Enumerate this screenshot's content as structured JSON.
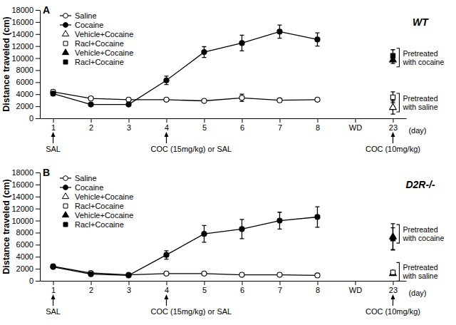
{
  "chart_data": [
    {
      "type": "line",
      "panel_label": "A",
      "title": "WT",
      "y_label": "Distance traveled (cm)",
      "x_label": "(day)",
      "categories": [
        "1",
        "2",
        "3",
        "4",
        "5",
        "6",
        "7",
        "8",
        "WD",
        "23"
      ],
      "ylim": [
        0,
        18000
      ],
      "yticks": [
        0,
        2000,
        4000,
        6000,
        8000,
        10000,
        12000,
        14000,
        16000,
        18000
      ],
      "legend": "top-left",
      "series": [
        {
          "name": "Saline",
          "color": "#000000",
          "marker": "circle-open",
          "line_style": "solid",
          "values": [
            4400,
            3300,
            3100,
            3100,
            2900,
            3400,
            3000,
            3100,
            null,
            null
          ],
          "errors": [
            300,
            200,
            200,
            200,
            200,
            600,
            200,
            200,
            null,
            null
          ]
        },
        {
          "name": "Cocaine",
          "color": "#000000",
          "marker": "circle-filled",
          "line_style": "solid",
          "values": [
            4100,
            2300,
            2300,
            6300,
            11000,
            12500,
            14400,
            13100,
            null,
            null
          ],
          "errors": [
            300,
            200,
            200,
            700,
            900,
            1300,
            1100,
            1100,
            null,
            null
          ]
        },
        {
          "name": "Vehicle+Cocaine",
          "color": "#000000",
          "marker": "triangle-open",
          "line_style": "none",
          "values": [
            null,
            null,
            null,
            null,
            null,
            null,
            null,
            null,
            null,
            1800
          ],
          "errors": [
            null,
            null,
            null,
            null,
            null,
            null,
            null,
            null,
            null,
            1100
          ]
        },
        {
          "name": "Racl+Cocaine",
          "color": "#000000",
          "marker": "square-open",
          "line_style": "none",
          "values": [
            null,
            null,
            null,
            null,
            null,
            null,
            null,
            null,
            null,
            3500
          ],
          "errors": [
            null,
            null,
            null,
            null,
            null,
            null,
            null,
            null,
            null,
            900
          ]
        },
        {
          "name": "Vehicle+Cocaine",
          "color": "#000000",
          "marker": "triangle-filled",
          "line_style": "none",
          "values": [
            null,
            null,
            null,
            null,
            null,
            null,
            null,
            null,
            null,
            9700
          ],
          "errors": [
            null,
            null,
            null,
            null,
            null,
            null,
            null,
            null,
            null,
            600
          ]
        },
        {
          "name": "Racl+Cocaine",
          "color": "#000000",
          "marker": "square-filled",
          "line_style": "none",
          "values": [
            null,
            null,
            null,
            null,
            null,
            null,
            null,
            null,
            null,
            10400
          ],
          "errors": [
            null,
            null,
            null,
            null,
            null,
            null,
            null,
            null,
            null,
            1000
          ]
        }
      ],
      "annotations": [
        {
          "text": "SAL",
          "x": "1"
        },
        {
          "text": "COC (15mg/kg) or SAL",
          "x": "4"
        },
        {
          "text": "COC (10mg/kg)",
          "x": "23"
        }
      ],
      "brackets": [
        {
          "text": "Pretreated with cocaine",
          "x": "23",
          "y": 10100
        },
        {
          "text": "Pretreated with saline",
          "x": "23",
          "y": 2600
        }
      ]
    },
    {
      "type": "line",
      "panel_label": "B",
      "title": "D2R-/-",
      "y_label": "Distance traveled (cm)",
      "x_label": "(day)",
      "categories": [
        "1",
        "2",
        "3",
        "4",
        "5",
        "6",
        "7",
        "8",
        "WD",
        "23"
      ],
      "ylim": [
        0,
        18000
      ],
      "yticks": [
        0,
        2000,
        4000,
        6000,
        8000,
        10000,
        12000,
        14000,
        16000,
        18000
      ],
      "legend": "top-left",
      "series": [
        {
          "name": "Saline",
          "color": "#000000",
          "marker": "circle-open",
          "line_style": "solid",
          "values": [
            2400,
            1300,
            1000,
            1200,
            1200,
            1000,
            1000,
            900,
            null,
            null
          ],
          "errors": [
            200,
            150,
            150,
            150,
            150,
            150,
            150,
            150,
            null,
            null
          ]
        },
        {
          "name": "Cocaine",
          "color": "#000000",
          "marker": "circle-filled",
          "line_style": "solid",
          "values": [
            2300,
            1100,
            900,
            4300,
            7800,
            8600,
            10000,
            10600,
            null,
            null
          ],
          "errors": [
            200,
            150,
            150,
            700,
            1400,
            1600,
            1400,
            1700,
            null,
            null
          ]
        },
        {
          "name": "Vehicle+Cocaine",
          "color": "#000000",
          "marker": "triangle-open",
          "line_style": "none",
          "values": [
            null,
            null,
            null,
            null,
            null,
            null,
            null,
            null,
            null,
            1200
          ],
          "errors": [
            null,
            null,
            null,
            null,
            null,
            null,
            null,
            null,
            null,
            300
          ]
        },
        {
          "name": "Racl+Cocaine",
          "color": "#000000",
          "marker": "square-open",
          "line_style": "none",
          "values": [
            null,
            null,
            null,
            null,
            null,
            null,
            null,
            null,
            null,
            1400
          ],
          "errors": [
            null,
            null,
            null,
            null,
            null,
            null,
            null,
            null,
            null,
            300
          ]
        },
        {
          "name": "Vehicle+Cocaine",
          "color": "#000000",
          "marker": "triangle-filled",
          "line_style": "none",
          "values": [
            null,
            null,
            null,
            null,
            null,
            null,
            null,
            null,
            null,
            7300
          ],
          "errors": [
            null,
            null,
            null,
            null,
            null,
            null,
            null,
            null,
            null,
            2200
          ]
        },
        {
          "name": "Racl+Cocaine",
          "color": "#000000",
          "marker": "square-filled",
          "line_style": "none",
          "values": [
            null,
            null,
            null,
            null,
            null,
            null,
            null,
            null,
            null,
            7000
          ],
          "errors": [
            null,
            null,
            null,
            null,
            null,
            null,
            null,
            null,
            null,
            1800
          ]
        }
      ],
      "annotations": [
        {
          "text": "SAL",
          "x": "1"
        },
        {
          "text": "COC (15mg/kg) or SAL",
          "x": "4"
        },
        {
          "text": "COC (10mg/kg)",
          "x": "23"
        }
      ],
      "brackets": [
        {
          "text": "Pretreated with cocaine",
          "x": "23",
          "y": 7800
        },
        {
          "text": "Pretreated with saline",
          "x": "23",
          "y": 1500
        }
      ]
    }
  ]
}
